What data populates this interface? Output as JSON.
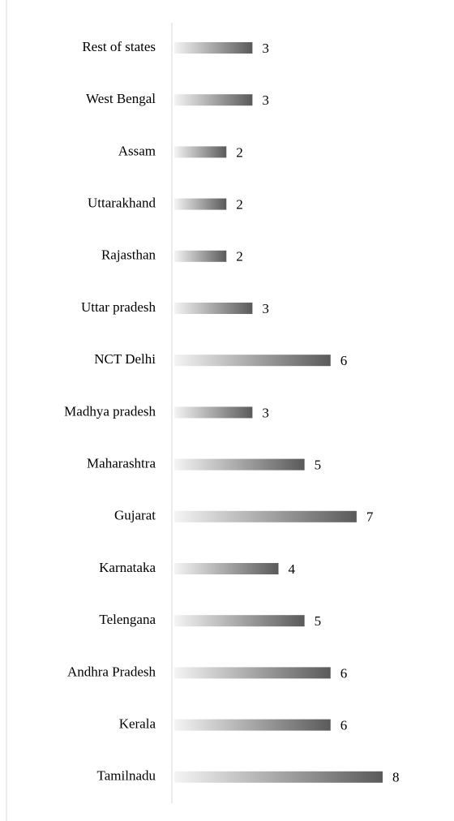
{
  "chart_data": {
    "type": "bar",
    "orientation": "horizontal",
    "categories": [
      "Rest of states",
      "West Bengal",
      "Assam",
      "Uttarakhand",
      "Rajasthan",
      "Uttar pradesh",
      "NCT Delhi",
      "Madhya pradesh",
      "Maharashtra",
      "Gujarat",
      "Karnataka",
      "Telengana",
      "Andhra Pradesh",
      "Kerala",
      "Tamilnadu"
    ],
    "values": [
      3,
      3,
      2,
      2,
      2,
      3,
      6,
      3,
      5,
      7,
      4,
      5,
      6,
      6,
      8
    ],
    "color": "#5a5a5a"
  }
}
